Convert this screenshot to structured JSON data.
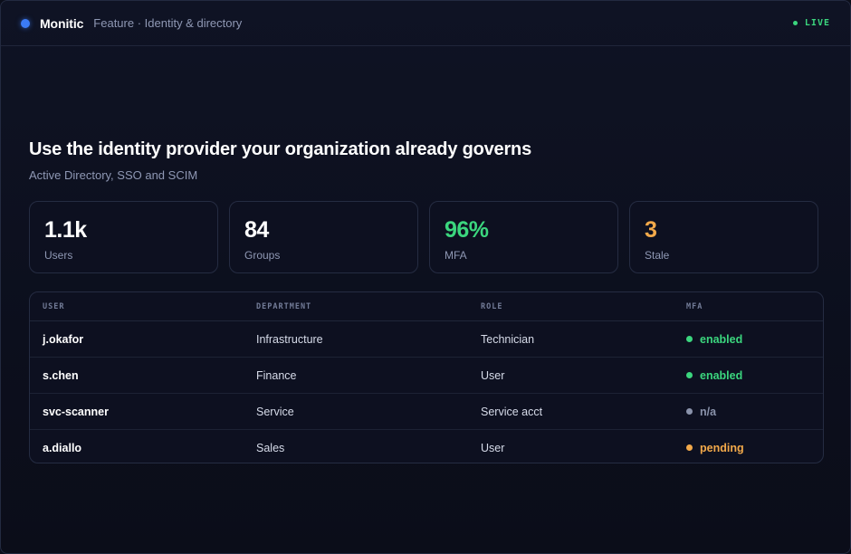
{
  "colors": {
    "accent": "#3b7bf6",
    "live": "#3bd67e",
    "success": "#3bd67e",
    "warning": "#f2a94a",
    "muted": "#8a93ab"
  },
  "header": {
    "brand": "Monitic",
    "breadcrumb": "Feature · Identity & directory",
    "status": "LIVE"
  },
  "main": {
    "title": "Use the identity provider your organization already governs",
    "subtitle": "Active Directory, SSO and SCIM"
  },
  "stats": [
    {
      "value": "1.1k",
      "label": "Users",
      "tone": "default"
    },
    {
      "value": "84",
      "label": "Groups",
      "tone": "default"
    },
    {
      "value": "96%",
      "label": "MFA",
      "tone": "green"
    },
    {
      "value": "3",
      "label": "Stale",
      "tone": "amber"
    }
  ],
  "table": {
    "columns": [
      "USER",
      "DEPARTMENT",
      "ROLE",
      "MFA"
    ],
    "rows": [
      {
        "user": "j.okafor",
        "department": "Infrastructure",
        "role": "Technician",
        "mfa": "enabled",
        "mfa_color": "#3bd67e"
      },
      {
        "user": "s.chen",
        "department": "Finance",
        "role": "User",
        "mfa": "enabled",
        "mfa_color": "#3bd67e"
      },
      {
        "user": "svc-scanner",
        "department": "Service",
        "role": "Service acct",
        "mfa": "n/a",
        "mfa_color": "#8a93ab"
      },
      {
        "user": "a.diallo",
        "department": "Sales",
        "role": "User",
        "mfa": "pending",
        "mfa_color": "#f2a94a"
      }
    ]
  }
}
